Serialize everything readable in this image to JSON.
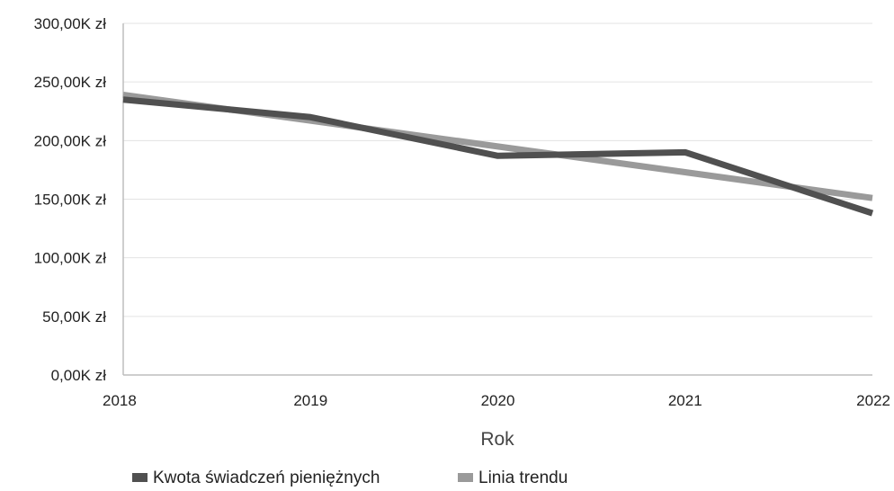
{
  "chart_data": {
    "type": "line",
    "x": [
      "2018",
      "2019",
      "2020",
      "2021",
      "2022"
    ],
    "xlabel": "Rok",
    "ylabel": "",
    "ylim": [
      0,
      300000
    ],
    "y_tick_labels": [
      "0,00K zł",
      "50,00K zł",
      "100,00K zł",
      "150,00K zł",
      "200,00K zł",
      "250,00K zł",
      "300,00K zł"
    ],
    "grid": true,
    "legend_position": "bottom",
    "series": [
      {
        "name": "Kwota świadczeń pieniężnych",
        "values": [
          235000,
          220000,
          187000,
          190000,
          138000
        ],
        "color": "#505050"
      },
      {
        "name": "Linia trendu",
        "values": [
          239000,
          217000,
          195000,
          173000,
          151000
        ],
        "color": "#9a9a9a"
      }
    ]
  }
}
